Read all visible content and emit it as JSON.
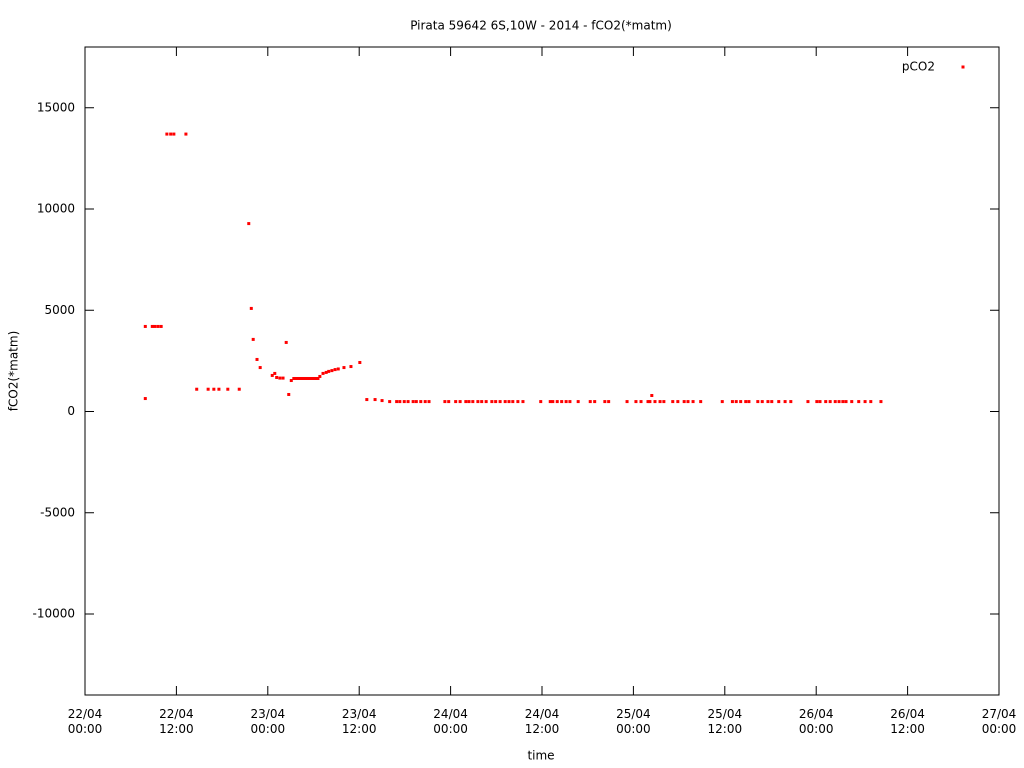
{
  "chart_data": {
    "type": "scatter",
    "title": "Pirata 59642 6S,10W - 2014 - fCO2(*matm)",
    "x_label": "time",
    "y_label": "fCO2(*matm)",
    "xlim": [
      "22/04 00:00",
      "27/04 00:00"
    ],
    "xticks": [
      "22/04 00:00",
      "22/04 12:00",
      "23/04 00:00",
      "23/04 12:00",
      "24/04 00:00",
      "24/04 12:00",
      "25/04 00:00",
      "25/04 12:00",
      "26/04 00:00",
      "26/04 12:00",
      "27/04 00:00"
    ],
    "ylim": [
      -14000,
      18000
    ],
    "yticks": [
      -10000,
      -5000,
      0,
      5000,
      10000,
      15000
    ],
    "grid": false,
    "legend": "top right",
    "series": [
      {
        "name": "pCO2",
        "color": "#ff0000",
        "x": [
          "22/04 07:55",
          "22/04 07:55",
          "22/04 08:50",
          "22/04 09:10",
          "22/04 09:35",
          "22/04 10:00",
          "22/04 10:45",
          "22/04 11:15",
          "22/04 11:40",
          "22/04 13:15",
          "22/04 14:40",
          "22/04 16:10",
          "22/04 16:55",
          "22/04 17:35",
          "22/04 18:45",
          "22/04 20:15",
          "22/04 21:30",
          "22/04 21:50",
          "22/04 22:05",
          "22/04 22:35",
          "22/04 23:00",
          "23/04 00:35",
          "23/04 00:55",
          "23/04 01:10",
          "23/04 01:35",
          "23/04 02:00",
          "23/04 02:25",
          "23/04 02:45",
          "23/04 03:05",
          "23/04 03:25",
          "23/04 03:40",
          "23/04 04:00",
          "23/04 04:15",
          "23/04 04:30",
          "23/04 04:45",
          "23/04 05:00",
          "23/04 05:15",
          "23/04 05:30",
          "23/04 05:50",
          "23/04 06:05",
          "23/04 06:20",
          "23/04 06:35",
          "23/04 06:50",
          "23/04 07:15",
          "23/04 07:40",
          "23/04 08:00",
          "23/04 08:25",
          "23/04 08:50",
          "23/04 09:15",
          "23/04 10:00",
          "23/04 10:55",
          "23/04 12:05",
          "23/04 13:00",
          "23/04 14:05",
          "23/04 15:00",
          "23/04 16:00",
          "23/04 16:55",
          "23/04 17:20",
          "23/04 17:55",
          "23/04 18:25",
          "23/04 19:05",
          "23/04 19:30",
          "23/04 20:05",
          "23/04 20:40",
          "23/04 21:10",
          "23/04 23:15",
          "23/04 23:45",
          "24/04 00:40",
          "24/04 01:15",
          "24/04 02:00",
          "24/04 02:25",
          "24/04 02:55",
          "24/04 03:35",
          "24/04 04:05",
          "24/04 04:40",
          "24/04 05:25",
          "24/04 05:55",
          "24/04 06:30",
          "24/04 07:10",
          "24/04 07:40",
          "24/04 08:10",
          "24/04 08:50",
          "24/04 09:30",
          "24/04 11:50",
          "24/04 13:05",
          "24/04 13:25",
          "24/04 14:00",
          "24/04 14:35",
          "24/04 15:10",
          "24/04 15:40",
          "24/04 16:45",
          "24/04 18:20",
          "24/04 18:55",
          "24/04 20:15",
          "24/04 20:45",
          "24/04 23:10",
          "25/04 00:20",
          "25/04 01:00",
          "25/04 01:55",
          "25/04 02:10",
          "25/04 02:25",
          "25/04 02:50",
          "25/04 03:30",
          "25/04 04:00",
          "25/04 05:10",
          "25/04 05:50",
          "25/04 06:40",
          "25/04 07:10",
          "25/04 07:50",
          "25/04 08:50",
          "25/04 11:40",
          "25/04 13:00",
          "25/04 13:30",
          "25/04 14:05",
          "25/04 14:45",
          "25/04 15:10",
          "25/04 16:20",
          "25/04 16:55",
          "25/04 17:40",
          "25/04 18:10",
          "25/04 19:05",
          "25/04 19:55",
          "25/04 20:40",
          "25/04 22:55",
          "26/04 00:05",
          "26/04 00:30",
          "26/04 01:15",
          "26/04 01:50",
          "26/04 02:30",
          "26/04 03:00",
          "26/04 03:30",
          "26/04 03:55",
          "26/04 04:40",
          "26/04 05:35",
          "26/04 06:25",
          "26/04 07:10",
          "26/04 08:30"
        ],
        "values": [
          640,
          4200,
          4200,
          4200,
          4200,
          4200,
          13700,
          13700,
          13700,
          13700,
          1100,
          1100,
          1100,
          1100,
          1100,
          1100,
          9280,
          5090,
          3560,
          2570,
          2170,
          1780,
          1880,
          1680,
          1650,
          1650,
          3410,
          840,
          1530,
          1630,
          1630,
          1630,
          1630,
          1630,
          1630,
          1630,
          1630,
          1630,
          1630,
          1630,
          1630,
          1630,
          1730,
          1880,
          1930,
          1980,
          2020,
          2070,
          2100,
          2170,
          2220,
          2420,
          590,
          590,
          540,
          490,
          490,
          490,
          490,
          490,
          490,
          490,
          490,
          490,
          490,
          490,
          490,
          490,
          490,
          490,
          490,
          490,
          490,
          490,
          490,
          490,
          490,
          490,
          490,
          490,
          490,
          490,
          490,
          490,
          490,
          490,
          490,
          490,
          490,
          490,
          490,
          490,
          490,
          490,
          490,
          490,
          490,
          490,
          490,
          490,
          790,
          490,
          490,
          490,
          490,
          490,
          490,
          490,
          490,
          490,
          490,
          490,
          490,
          490,
          490,
          490,
          490,
          490,
          490,
          490,
          490,
          490,
          490,
          490,
          490,
          490,
          490,
          490,
          490,
          490,
          490,
          490,
          490,
          490,
          490,
          490,
          490
        ]
      }
    ]
  }
}
